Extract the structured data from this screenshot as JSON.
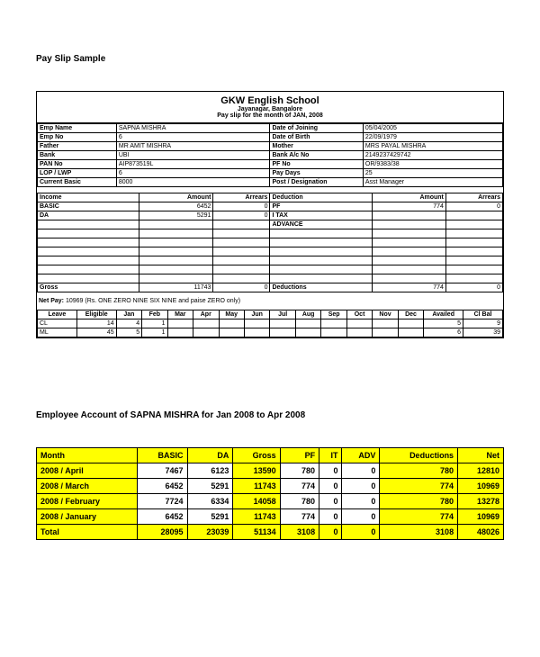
{
  "title": "Pay Slip Sample",
  "header": {
    "org": "GKW English School",
    "location": "Jayanagar, Bangalore",
    "subtitle": "Pay slip for the month of JAN, 2008"
  },
  "info": {
    "left": [
      {
        "label": "Emp Name",
        "value": "SAPNA MISHRA"
      },
      {
        "label": "Emp No",
        "value": "6"
      },
      {
        "label": "Father",
        "value": "MR AMIT MISHRA"
      },
      {
        "label": "Bank",
        "value": "UBI"
      },
      {
        "label": "PAN No",
        "value": "AIP873519L"
      },
      {
        "label": "LOP / LWP",
        "value": "6"
      },
      {
        "label": "Current Basic",
        "value": "8000"
      }
    ],
    "right": [
      {
        "label": "Date of Joining",
        "value": "05/04/2005"
      },
      {
        "label": "Date of Birth",
        "value": "22/09/1979"
      },
      {
        "label": "Mother",
        "value": "MRS PAYAL MISHRA"
      },
      {
        "label": "Bank A/c No",
        "value": "2149237429742"
      },
      {
        "label": "PF No",
        "value": "OR/9383/38"
      },
      {
        "label": "Pay Days",
        "value": "25"
      },
      {
        "label": "Post / Designation",
        "value": "Asst Manager"
      }
    ]
  },
  "earnings": {
    "income_label": "Income",
    "amount_label": "Amount",
    "arrears_label": "Arrears",
    "deduction_label": "Deduction",
    "rows": [
      {
        "income": "BASIC",
        "amount": "6452",
        "arrears": "0",
        "deduction": "PF",
        "d_amount": "774",
        "d_arrears": "0"
      },
      {
        "income": "DA",
        "amount": "5291",
        "arrears": "0",
        "deduction": "I TAX",
        "d_amount": "",
        "d_arrears": ""
      },
      {
        "income": "",
        "amount": "",
        "arrears": "",
        "deduction": "ADVANCE",
        "d_amount": "",
        "d_arrears": ""
      },
      {
        "income": "",
        "amount": "",
        "arrears": "",
        "deduction": "",
        "d_amount": "",
        "d_arrears": ""
      },
      {
        "income": "",
        "amount": "",
        "arrears": "",
        "deduction": "",
        "d_amount": "",
        "d_arrears": ""
      },
      {
        "income": "",
        "amount": "",
        "arrears": "",
        "deduction": "",
        "d_amount": "",
        "d_arrears": ""
      },
      {
        "income": "",
        "amount": "",
        "arrears": "",
        "deduction": "",
        "d_amount": "",
        "d_arrears": ""
      },
      {
        "income": "",
        "amount": "",
        "arrears": "",
        "deduction": "",
        "d_amount": "",
        "d_arrears": ""
      },
      {
        "income": "",
        "amount": "",
        "arrears": "",
        "deduction": "",
        "d_amount": "",
        "d_arrears": ""
      }
    ],
    "gross_label": "Gross",
    "gross_amount": "11743",
    "gross_arrears": "0",
    "deductions_label": "Deductions",
    "deductions_amount": "774",
    "deductions_arrears": "0"
  },
  "netpay": {
    "label": "Net Pay:",
    "value": "10969 (Rs. ONE ZERO NINE SIX NINE and paise ZERO only)"
  },
  "leave": {
    "headers": [
      "Leave",
      "Eligible",
      "Jan",
      "Feb",
      "Mar",
      "Apr",
      "May",
      "Jun",
      "Jul",
      "Aug",
      "Sep",
      "Oct",
      "Nov",
      "Dec",
      "Availed",
      "Cl Bal"
    ],
    "rows": [
      [
        "CL",
        "14",
        "4",
        "1",
        "",
        "",
        "",
        "",
        "",
        "",
        "",
        "",
        "",
        "",
        "5",
        "9"
      ],
      [
        "ML",
        "45",
        "5",
        "1",
        "",
        "",
        "",
        "",
        "",
        "",
        "",
        "",
        "",
        "",
        "6",
        "39"
      ]
    ]
  },
  "account": {
    "title": "Employee Account of SAPNA MISHRA for Jan 2008 to Apr 2008",
    "headers": [
      "Month",
      "BASIC",
      "DA",
      "Gross",
      "PF",
      "IT",
      "ADV",
      "Deductions",
      "Net"
    ],
    "rows": [
      {
        "month": "2008 / April",
        "basic": "7467",
        "da": "6123",
        "gross": "13590",
        "pf": "780",
        "it": "0",
        "adv": "0",
        "ded": "780",
        "net": "12810"
      },
      {
        "month": "2008 / March",
        "basic": "6452",
        "da": "5291",
        "gross": "11743",
        "pf": "774",
        "it": "0",
        "adv": "0",
        "ded": "774",
        "net": "10969"
      },
      {
        "month": "2008 / February",
        "basic": "7724",
        "da": "6334",
        "gross": "14058",
        "pf": "780",
        "it": "0",
        "adv": "0",
        "ded": "780",
        "net": "13278"
      },
      {
        "month": "2008 / January",
        "basic": "6452",
        "da": "5291",
        "gross": "11743",
        "pf": "774",
        "it": "0",
        "adv": "0",
        "ded": "774",
        "net": "10969"
      }
    ],
    "total": {
      "month": "Total",
      "basic": "28095",
      "da": "23039",
      "gross": "51134",
      "pf": "3108",
      "it": "0",
      "adv": "0",
      "ded": "3108",
      "net": "48026"
    },
    "highlight_color": "#ffff00"
  }
}
